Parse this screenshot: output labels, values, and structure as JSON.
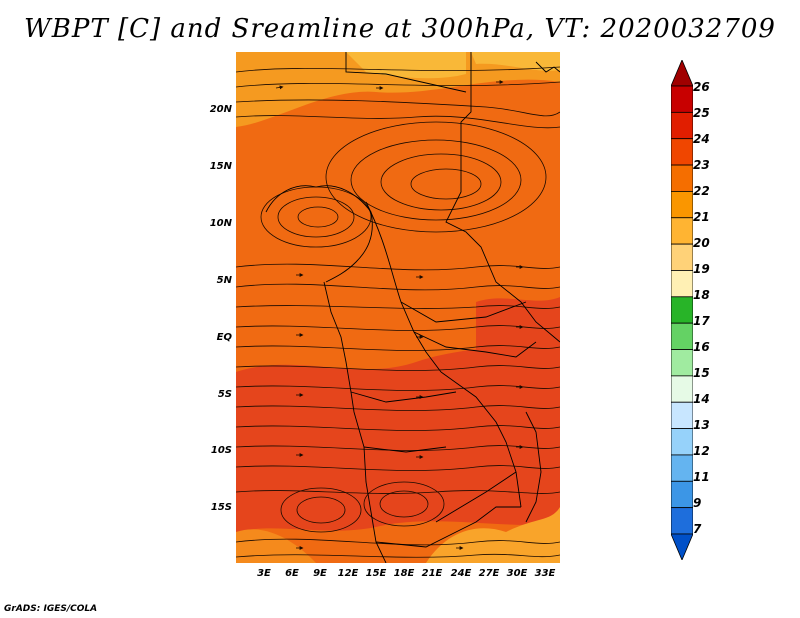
{
  "title": "WBPT [C] and Sreamline at 300hPa, VT: 2020032709",
  "footer": "GrADS: IGES/COLA",
  "lat_labels": [
    "20N",
    "15N",
    "10N",
    "5N",
    "EQ",
    "5S",
    "10S",
    "15S"
  ],
  "lon_labels": [
    "3E",
    "6E",
    "9E",
    "12E",
    "15E",
    "18E",
    "21E",
    "24E",
    "27E",
    "30E",
    "33E"
  ],
  "colorbar": {
    "labels": [
      "26",
      "25",
      "24",
      "23",
      "22",
      "21",
      "20",
      "19",
      "18",
      "17",
      "16",
      "15",
      "14",
      "13",
      "12",
      "11",
      "9",
      "7"
    ],
    "colors": [
      "#a00000",
      "#c80000",
      "#e11e00",
      "#f04600",
      "#f56e00",
      "#fa9600",
      "#ffb432",
      "#ffd278",
      "#fff0b4",
      "#28b428",
      "#64d264",
      "#a0eba0",
      "#e6fae6",
      "#c8e6ff",
      "#96d2fa",
      "#64b4f0",
      "#3c96e6",
      "#1e6edc",
      "#0050c8"
    ]
  },
  "map_colors": {
    "base": "#f06a12",
    "warm": "#e8421a",
    "cool": "#f58a1c",
    "light": "#f9ac2a"
  }
}
